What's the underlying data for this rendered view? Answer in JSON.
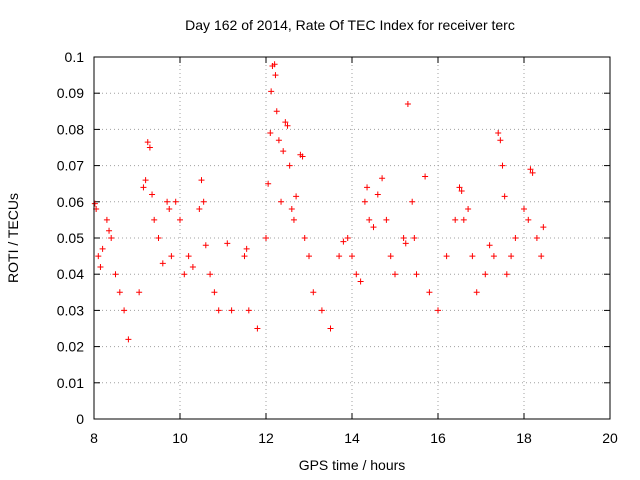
{
  "chart_data": {
    "type": "scatter",
    "title": "Day 162 of 2014, Rate Of TEC Index for receiver terc",
    "xlabel": "GPS time / hours",
    "ylabel": "ROTI / TECUs",
    "xlim": [
      8,
      20
    ],
    "ylim": [
      0,
      0.1
    ],
    "x_ticks": [
      "8",
      "10",
      "12",
      "14",
      "16",
      "18",
      "20"
    ],
    "y_ticks": [
      "0",
      "0.01",
      "0.02",
      "0.03",
      "0.04",
      "0.05",
      "0.06",
      "0.07",
      "0.08",
      "0.09",
      "0.1"
    ],
    "grid": true,
    "marker": "plus",
    "series_color": "#ff0000",
    "series": [
      {
        "name": "ROTI",
        "points": [
          [
            8.02,
            0.0595
          ],
          [
            8.05,
            0.058
          ],
          [
            8.1,
            0.045
          ],
          [
            8.15,
            0.042
          ],
          [
            8.2,
            0.047
          ],
          [
            8.3,
            0.055
          ],
          [
            8.35,
            0.052
          ],
          [
            8.4,
            0.05
          ],
          [
            8.5,
            0.04
          ],
          [
            8.6,
            0.035
          ],
          [
            8.7,
            0.03
          ],
          [
            8.8,
            0.022
          ],
          [
            9.05,
            0.035
          ],
          [
            9.15,
            0.064
          ],
          [
            9.2,
            0.066
          ],
          [
            9.25,
            0.0765
          ],
          [
            9.3,
            0.075
          ],
          [
            9.35,
            0.062
          ],
          [
            9.4,
            0.055
          ],
          [
            9.5,
            0.05
          ],
          [
            9.6,
            0.043
          ],
          [
            9.7,
            0.06
          ],
          [
            9.75,
            0.058
          ],
          [
            9.8,
            0.045
          ],
          [
            9.9,
            0.06
          ],
          [
            10.0,
            0.055
          ],
          [
            10.1,
            0.04
          ],
          [
            10.2,
            0.045
          ],
          [
            10.3,
            0.042
          ],
          [
            10.45,
            0.058
          ],
          [
            10.5,
            0.066
          ],
          [
            10.55,
            0.06
          ],
          [
            10.6,
            0.048
          ],
          [
            10.7,
            0.04
          ],
          [
            10.8,
            0.035
          ],
          [
            10.9,
            0.03
          ],
          [
            11.1,
            0.0485
          ],
          [
            11.2,
            0.03
          ],
          [
            11.5,
            0.045
          ],
          [
            11.55,
            0.047
          ],
          [
            11.6,
            0.03
          ],
          [
            11.8,
            0.025
          ],
          [
            12.0,
            0.05
          ],
          [
            12.05,
            0.065
          ],
          [
            12.1,
            0.079
          ],
          [
            12.12,
            0.0905
          ],
          [
            12.15,
            0.0975
          ],
          [
            12.2,
            0.098
          ],
          [
            12.22,
            0.095
          ],
          [
            12.25,
            0.085
          ],
          [
            12.3,
            0.077
          ],
          [
            12.35,
            0.06
          ],
          [
            12.4,
            0.074
          ],
          [
            12.45,
            0.082
          ],
          [
            12.5,
            0.081
          ],
          [
            12.55,
            0.07
          ],
          [
            12.6,
            0.058
          ],
          [
            12.65,
            0.055
          ],
          [
            12.7,
            0.0615
          ],
          [
            12.8,
            0.073
          ],
          [
            12.85,
            0.0725
          ],
          [
            12.9,
            0.05
          ],
          [
            13.0,
            0.045
          ],
          [
            13.1,
            0.035
          ],
          [
            13.3,
            0.03
          ],
          [
            13.5,
            0.025
          ],
          [
            13.7,
            0.045
          ],
          [
            13.8,
            0.049
          ],
          [
            13.9,
            0.05
          ],
          [
            14.0,
            0.045
          ],
          [
            14.1,
            0.04
          ],
          [
            14.2,
            0.038
          ],
          [
            14.3,
            0.06
          ],
          [
            14.35,
            0.064
          ],
          [
            14.4,
            0.055
          ],
          [
            14.5,
            0.053
          ],
          [
            14.6,
            0.062
          ],
          [
            14.7,
            0.0665
          ],
          [
            14.8,
            0.055
          ],
          [
            14.9,
            0.045
          ],
          [
            15.0,
            0.04
          ],
          [
            15.2,
            0.05
          ],
          [
            15.25,
            0.0485
          ],
          [
            15.3,
            0.087
          ],
          [
            15.4,
            0.06
          ],
          [
            15.45,
            0.05
          ],
          [
            15.5,
            0.04
          ],
          [
            15.7,
            0.067
          ],
          [
            15.8,
            0.035
          ],
          [
            16.0,
            0.03
          ],
          [
            16.2,
            0.045
          ],
          [
            16.4,
            0.055
          ],
          [
            16.5,
            0.064
          ],
          [
            16.55,
            0.063
          ],
          [
            16.6,
            0.055
          ],
          [
            16.7,
            0.058
          ],
          [
            16.8,
            0.045
          ],
          [
            16.9,
            0.035
          ],
          [
            17.1,
            0.04
          ],
          [
            17.2,
            0.048
          ],
          [
            17.3,
            0.045
          ],
          [
            17.4,
            0.079
          ],
          [
            17.45,
            0.077
          ],
          [
            17.5,
            0.07
          ],
          [
            17.55,
            0.0615
          ],
          [
            17.6,
            0.04
          ],
          [
            17.7,
            0.045
          ],
          [
            17.8,
            0.05
          ],
          [
            18.0,
            0.058
          ],
          [
            18.1,
            0.055
          ],
          [
            18.15,
            0.069
          ],
          [
            18.2,
            0.068
          ],
          [
            18.3,
            0.05
          ],
          [
            18.4,
            0.045
          ],
          [
            18.45,
            0.053
          ]
        ]
      }
    ]
  }
}
